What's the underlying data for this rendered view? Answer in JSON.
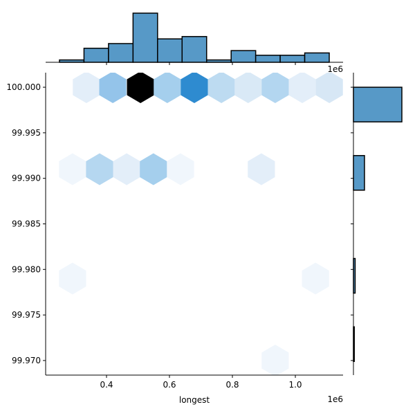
{
  "chart_data": {
    "type": "hexbin-joint",
    "xlabel": "longest",
    "ylabel": "",
    "x_offset_text": "1e6",
    "top_offset_text": "1e6",
    "xlim": [
      0.2066,
      1.1516
    ],
    "ylim": [
      99.9684,
      100.0016
    ],
    "x_ticks": [
      0.4,
      0.6,
      0.8,
      1.0
    ],
    "x_tick_labels": [
      "0.4",
      "0.6",
      "0.8",
      "1.0"
    ],
    "y_ticks": [
      100.0,
      99.995,
      99.99,
      99.985,
      99.98,
      99.975,
      99.97
    ],
    "y_tick_labels": [
      "100.000",
      "99.995",
      "99.990",
      "99.985",
      "99.980",
      "99.975",
      "99.970"
    ],
    "grid": false,
    "hexbins": [
      {
        "x": 0.336,
        "y": 100.0,
        "count": 2,
        "color": "#e3eef9"
      },
      {
        "x": 0.42,
        "y": 100.0,
        "count": 8,
        "color": "#94c4ea"
      },
      {
        "x": 0.508,
        "y": 100.0,
        "count": 21,
        "color": "#000000"
      },
      {
        "x": 0.593,
        "y": 100.0,
        "count": 7,
        "color": "#a5cfed"
      },
      {
        "x": 0.679,
        "y": 100.0,
        "count": 14,
        "color": "#2e8bd0"
      },
      {
        "x": 0.765,
        "y": 100.0,
        "count": 5,
        "color": "#bddbf1"
      },
      {
        "x": 0.85,
        "y": 100.0,
        "count": 3,
        "color": "#d9e9f6"
      },
      {
        "x": 0.936,
        "y": 100.0,
        "count": 6,
        "color": "#b3d6f0"
      },
      {
        "x": 1.022,
        "y": 100.0,
        "count": 2,
        "color": "#e3eef9"
      },
      {
        "x": 1.108,
        "y": 100.0,
        "count": 3,
        "color": "#d7e7f5"
      },
      {
        "x": 0.292,
        "y": 99.991,
        "count": 1,
        "color": "#f0f6fc"
      },
      {
        "x": 0.378,
        "y": 99.991,
        "count": 6,
        "color": "#b5d7f0"
      },
      {
        "x": 0.464,
        "y": 99.991,
        "count": 2,
        "color": "#e3eef9"
      },
      {
        "x": 0.549,
        "y": 99.991,
        "count": 7,
        "color": "#a5cfed"
      },
      {
        "x": 0.635,
        "y": 99.991,
        "count": 1,
        "color": "#f0f6fc"
      },
      {
        "x": 0.892,
        "y": 99.991,
        "count": 2,
        "color": "#e3eef9"
      },
      {
        "x": 0.292,
        "y": 99.979,
        "count": 1,
        "color": "#f0f6fc"
      },
      {
        "x": 1.064,
        "y": 99.979,
        "count": 1,
        "color": "#f0f6fc"
      },
      {
        "x": 0.936,
        "y": 99.97,
        "count": 1,
        "color": "#f0f6fc"
      }
    ],
    "x_marginal": {
      "type": "histogram",
      "bin_range": [
        0.2505,
        1.1077
      ],
      "counts": [
        1,
        6,
        8,
        21,
        10,
        11,
        1,
        5,
        3,
        3,
        4
      ]
    },
    "y_marginal": {
      "type": "histogram",
      "bins": [
        [
          99.9962,
          100.0
        ],
        [
          99.9887,
          99.9925
        ],
        [
          99.9774,
          99.9812
        ],
        [
          99.9699,
          99.9737
        ]
      ],
      "counts": [
        57,
        13,
        2,
        1
      ]
    },
    "bar_color": "#5799c7"
  }
}
